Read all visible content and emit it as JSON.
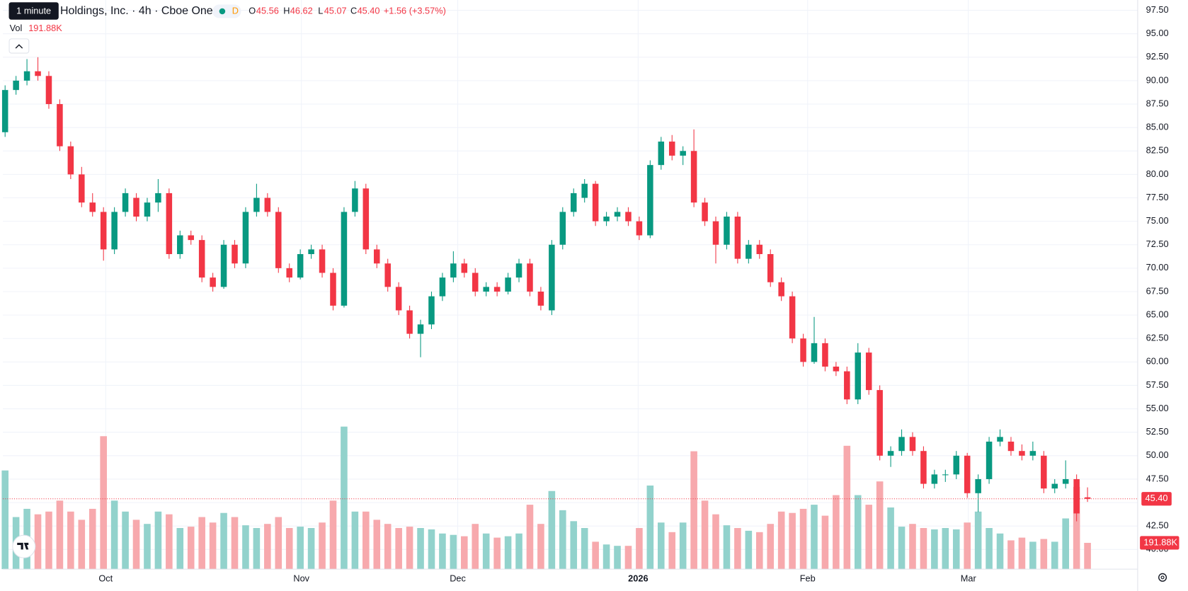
{
  "header": {
    "tooltip": "1 minute",
    "symbol": "Holdings, Inc. · 4h · Cboe One",
    "interval_badge": "D",
    "o_label": "O",
    "o": "45.56",
    "h_label": "H",
    "h": "46.62",
    "l_label": "L",
    "l": "45.07",
    "c_label": "C",
    "change": "+1.56 (+3.57%)",
    "vol_label": "Vol"
  },
  "chart_data": {
    "type": "candlestick",
    "open": [
      84.5,
      89,
      90,
      91,
      90.5,
      87.5,
      83,
      80,
      77,
      76,
      72,
      76,
      77.5,
      75.5,
      77,
      78,
      71.5,
      73.5,
      73,
      69,
      68,
      72.5,
      70.5,
      76,
      77.5,
      76,
      70,
      69,
      71.5,
      72,
      69.5,
      66,
      76,
      78.5,
      72,
      70.5,
      68,
      65.5,
      63,
      64,
      67,
      69,
      70.5,
      69.5,
      67.5,
      68,
      67.5,
      69,
      70.5,
      67.5,
      65.5,
      72.5,
      76,
      77.5,
      79,
      75,
      75.5,
      76,
      75,
      73.5,
      81,
      83.5,
      82,
      82.5,
      77,
      75,
      72.5,
      75.5,
      71,
      72.5,
      71.5,
      68.5,
      67,
      62.5,
      60,
      62,
      59.5,
      59,
      56,
      61,
      57,
      50,
      50.5,
      52,
      50.5,
      47,
      48,
      48,
      50,
      46,
      47.5,
      51.5,
      51.5,
      50.5,
      50,
      50,
      46.5,
      47,
      47.5,
      45.56
    ],
    "high": [
      89.5,
      90.5,
      92.3,
      92.5,
      91,
      88,
      83.5,
      80.8,
      78,
      76.5,
      76.5,
      78.5,
      78,
      77.5,
      79.5,
      78.5,
      74,
      74,
      73.5,
      69.5,
      73,
      73,
      76.5,
      79,
      78,
      76.5,
      70.5,
      72,
      72.5,
      72.5,
      70,
      76.5,
      79.3,
      79,
      72.5,
      71,
      68.5,
      66,
      64.5,
      67.5,
      69.5,
      71.8,
      71,
      70,
      68.5,
      68.5,
      69.5,
      71,
      71,
      68,
      73,
      76.5,
      78.5,
      79.5,
      79.3,
      76,
      76.5,
      76.5,
      75.5,
      81.5,
      84,
      84.2,
      83,
      84.8,
      77.5,
      75.5,
      76,
      76,
      73,
      73,
      72,
      69,
      67.5,
      63,
      64.8,
      62.5,
      60,
      59.5,
      62,
      61.5,
      57.5,
      51,
      52.8,
      52.5,
      51,
      48.5,
      48.5,
      50.5,
      50.3,
      48,
      52,
      52.8,
      52,
      51.2,
      51.5,
      50.5,
      47.5,
      49.5,
      48,
      46.62
    ],
    "low": [
      84,
      88.5,
      89.5,
      90,
      87,
      82.5,
      79.5,
      76.5,
      75.5,
      70.8,
      71.5,
      75.5,
      75,
      75,
      76,
      71,
      71,
      72.5,
      68.5,
      67.5,
      67.8,
      70,
      70,
      75.5,
      75.5,
      69.5,
      68.5,
      68.8,
      71,
      69,
      65.5,
      65.8,
      75.5,
      71.5,
      70,
      67.5,
      65,
      62.5,
      60.5,
      63.5,
      66.5,
      68.5,
      69,
      67,
      67,
      67,
      67.2,
      68.5,
      67,
      65.5,
      65,
      72,
      75.5,
      77,
      74.5,
      74.5,
      75,
      74.5,
      73,
      73.2,
      80.5,
      81.5,
      81,
      76.5,
      74.5,
      70.5,
      72,
      70.5,
      70.5,
      71,
      68,
      66.5,
      62,
      59.5,
      59.8,
      59,
      58.5,
      55.5,
      55.5,
      56.5,
      49.5,
      48.8,
      50,
      50,
      46.5,
      46.5,
      47.2,
      47.5,
      45.5,
      44,
      47,
      51,
      50,
      49.5,
      49.5,
      46,
      46,
      46.5,
      43,
      45.07
    ],
    "close": [
      89,
      90,
      91,
      90.5,
      87.5,
      83,
      80,
      77,
      76,
      72,
      76,
      78,
      75.5,
      77,
      78,
      71.5,
      73.5,
      73,
      69,
      68,
      72.5,
      70.5,
      76,
      77.5,
      76,
      70,
      69,
      71.5,
      72,
      69.5,
      66,
      76,
      78.5,
      72,
      70.5,
      68,
      65.5,
      63,
      64,
      67,
      69,
      70.5,
      69.5,
      67.5,
      68,
      67.5,
      69,
      70.5,
      67.5,
      66,
      72.5,
      76,
      78,
      79,
      75,
      75.5,
      76,
      75,
      73.5,
      81,
      83.5,
      82,
      82.5,
      77,
      75,
      72.5,
      75.5,
      71,
      72.5,
      71.5,
      68.5,
      67,
      62.5,
      60,
      62,
      59.5,
      59,
      56,
      61,
      57,
      50,
      50.5,
      52,
      50.5,
      47,
      48,
      48,
      50,
      46,
      47.5,
      51.5,
      52,
      50.5,
      50,
      50.5,
      46.5,
      47,
      47.5,
      43.84,
      45.4
    ],
    "volume": [
      720,
      380,
      440,
      400,
      420,
      500,
      420,
      360,
      440,
      970,
      500,
      420,
      360,
      330,
      420,
      400,
      300,
      310,
      380,
      340,
      410,
      380,
      320,
      300,
      330,
      380,
      300,
      310,
      300,
      340,
      500,
      1040,
      420,
      420,
      360,
      330,
      300,
      310,
      300,
      290,
      260,
      250,
      240,
      330,
      260,
      230,
      240,
      260,
      470,
      330,
      570,
      430,
      350,
      300,
      200,
      180,
      170,
      170,
      300,
      610,
      340,
      270,
      340,
      860,
      500,
      400,
      320,
      300,
      280,
      270,
      330,
      420,
      410,
      440,
      470,
      390,
      540,
      900,
      540,
      470,
      640,
      450,
      310,
      330,
      300,
      290,
      300,
      290,
      340,
      420,
      300,
      260,
      210,
      230,
      200,
      220,
      200,
      370,
      600,
      191.88
    ],
    "ylim": [
      37.9,
      98.6
    ],
    "yticks": [
      {
        "value": 40,
        "label": "40.00"
      },
      {
        "value": 42.5,
        "label": "42.50"
      },
      {
        "value": 45,
        "label": "45.00"
      },
      {
        "value": 47.5,
        "label": "47.50"
      },
      {
        "value": 50,
        "label": "50.00"
      },
      {
        "value": 52.5,
        "label": "52.50"
      },
      {
        "value": 55,
        "label": "55.00"
      },
      {
        "value": 57.5,
        "label": "57.50"
      },
      {
        "value": 60,
        "label": "60.00"
      },
      {
        "value": 62.5,
        "label": "62.50"
      },
      {
        "value": 65,
        "label": "65.00"
      },
      {
        "value": 67.5,
        "label": "67.50"
      },
      {
        "value": 70,
        "label": "70.00"
      },
      {
        "value": 72.5,
        "label": "72.50"
      },
      {
        "value": 75,
        "label": "75.00"
      },
      {
        "value": 77.5,
        "label": "77.50"
      },
      {
        "value": 80,
        "label": "80.00"
      },
      {
        "value": 82.5,
        "label": "82.50"
      },
      {
        "value": 85,
        "label": "85.00"
      },
      {
        "value": 87.5,
        "label": "87.50"
      },
      {
        "value": 90,
        "label": "90.00"
      },
      {
        "value": 92.5,
        "label": "92.50"
      },
      {
        "value": 95,
        "label": "95.00"
      },
      {
        "value": 97.5,
        "label": "97.50"
      }
    ],
    "vlim": [
      0,
      1100
    ],
    "xticks": [
      {
        "value": 9.2,
        "label": "Oct"
      },
      {
        "value": 27.1,
        "label": "Nov"
      },
      {
        "value": 41.4,
        "label": "Dec"
      },
      {
        "value": 57.9,
        "label": "2026"
      },
      {
        "value": 73.4,
        "label": "Feb"
      },
      {
        "value": 88.1,
        "label": "Mar"
      }
    ],
    "up_color": "#089981",
    "down_color": "#f23645",
    "up_volume_color": "#92d2cc",
    "down_volume_color": "#f7a9ad",
    "last_price_label": "45.40",
    "last_volume_label": "191.88K",
    "grid": true
  }
}
